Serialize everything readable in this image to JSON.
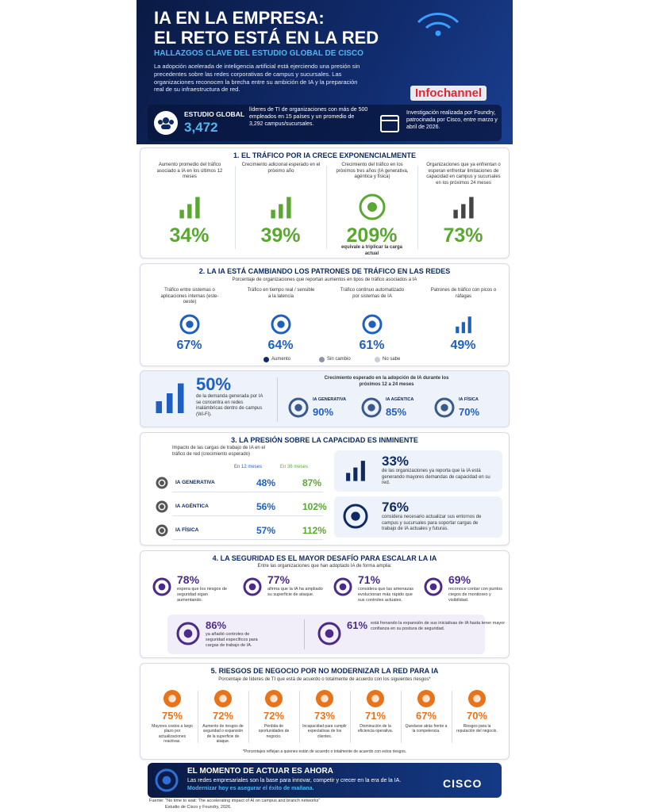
{
  "header": {
    "title_line1": "IA EN LA EMPRESA:",
    "title_line2": "EL RETO ESTÁ EN LA RED",
    "subtitle": "HALLAZGOS CLAVE DEL ESTUDIO GLOBAL DE CISCO",
    "intro": "La adopción acelerada de inteligencia artificial está ejerciendo una presión sin precedentes sobre las redes corporativas de campus y sucursales. Las organizaciones reconocen la brecha entre su ambición de IA y la preparación real de su infraestructura de red.",
    "brand": "Infochannel"
  },
  "study": {
    "label": "ESTUDIO GLOBAL",
    "count": "3,472",
    "description": "líderes de TI de organizaciones con más de 500 empleados en 15 países y un promedio de 3,292 campus/sucursales.",
    "research": "Investigación realizada por Foundry, patrocinada por Cisco, entre marzo y abril de 2026."
  },
  "section1": {
    "title": "1. EL TRÁFICO POR IA CRECE EXPONENCIALMENTE",
    "items": [
      {
        "text": "Aumento promedio del tráfico asociado a IA en los últimos 12 meses",
        "value": "34%"
      },
      {
        "text": "Crecimiento adicional esperado en el próximo año",
        "value": "39%"
      },
      {
        "text": "Crecimiento del tráfico en los próximos tres años (IA generativa, agéntica y física)",
        "value": "209%",
        "note": "equivale a triplicar la carga actual"
      },
      {
        "text": "Organizaciones que ya enfrentan o esperan enfrentar limitaciones de capacidad en campus y sucursales en los próximos 24 meses",
        "value": "73%"
      }
    ]
  },
  "section2": {
    "title": "2. LA IA ESTÁ CAMBIANDO LOS PATRONES DE TRÁFICO EN LAS REDES",
    "subtitle": "Porcentaje de organizaciones que reportan aumentos en tipos de tráfico asociados a IA",
    "items": [
      {
        "text": "Tráfico entre sistemas o aplicaciones internas (este-oeste)",
        "value": "67%"
      },
      {
        "text": "Tráfico en tiempo real / sensible a la latencia",
        "value": "64%"
      },
      {
        "text": "Tráfico continuo automatizado por sistemas de IA",
        "value": "61%"
      },
      {
        "text": "Patrones de tráfico con picos o ráfagas",
        "value": "49%"
      }
    ],
    "legend": [
      "Aumento",
      "Sin cambio",
      "No sabe"
    ]
  },
  "wifi": {
    "value": "50%",
    "text": "de la demanda generada por IA se concentra en redes inalámbricas dentro de campus (Wi-Fi).",
    "growth_title": "Crecimiento esperado en la adopción de IA durante los próximos 12 a 24 meses",
    "items": [
      {
        "label": "IA GENERATIVA",
        "value": "90%"
      },
      {
        "label": "IA AGÉNTICA",
        "value": "85%"
      },
      {
        "label": "IA FÍSICA",
        "value": "70%"
      }
    ]
  },
  "section3": {
    "title": "3. LA PRESIÓN SOBRE LA CAPACIDAD ES INMINENTE",
    "table_title": "Impacto de las cargas de trabajo de IA en el tráfico de red (crecimiento esperado)",
    "columns": [
      "En 12 meses",
      "En 36 meses"
    ],
    "rows": [
      [
        "IA GENERATIVA",
        "48%",
        "87%"
      ],
      [
        "IA AGÉNTICA",
        "56%",
        "102%"
      ],
      [
        "IA FÍSICA",
        "57%",
        "112%"
      ]
    ],
    "stats": [
      {
        "value": "33%",
        "text": "de las organizaciones ya reporta que la IA está generando mayores demandas de capacidad en su red."
      },
      {
        "value": "76%",
        "text": "considera necesario actualizar sus entornos de campus y sucursales para soportar cargas de trabajo de IA actuales y futuras."
      }
    ]
  },
  "section4": {
    "title": "4. LA SEGURIDAD ES EL MAYOR DESAFÍO PARA ESCALAR LA IA",
    "subtitle": "Entre las organizaciones que han adoptado IA de forma amplia:",
    "items": [
      {
        "value": "78%",
        "text": "espera que los riesgos de seguridad sigan aumentando."
      },
      {
        "value": "77%",
        "text": "afirma que la IA ha ampliado su superficie de ataque."
      },
      {
        "value": "71%",
        "text": "considera que las amenazas evolucionan más rápido que sus controles actuales."
      },
      {
        "value": "69%",
        "text": "reconoce contar con puntos ciegos de monitoreo y visibilidad."
      }
    ],
    "bottom": [
      {
        "value": "86%",
        "text": "ya añadió controles de seguridad específicos para cargas de trabajo de IA."
      },
      {
        "value": "61%",
        "text": "está frenando la expansión de sus iniciativas de IA hasta tener mayor confianza en su postura de seguridad."
      }
    ]
  },
  "section5": {
    "title": "5. RIESGOS DE NEGOCIO POR NO MODERNIZAR LA RED PARA IA",
    "subtitle": "Porcentaje de líderes de TI que está de acuerdo o totalmente de acuerdo con los siguientes riesgos*",
    "items": [
      {
        "value": "75%",
        "text": "Mayores costos a largo plazo por actualizaciones reactivas."
      },
      {
        "value": "72%",
        "text": "Aumento de riesgos de seguridad o expansión de la superficie de ataque."
      },
      {
        "value": "72%",
        "text": "Pérdida de oportunidades de negocio."
      },
      {
        "value": "73%",
        "text": "Incapacidad para cumplir expectativas de los clientes."
      },
      {
        "value": "71%",
        "text": "Disminución de la eficiencia operativa."
      },
      {
        "value": "67%",
        "text": "Quedarse atrás frente a la competencia."
      },
      {
        "value": "70%",
        "text": "Riesgos para la reputación del negocio."
      }
    ],
    "footnote": "*Porcentajes reflejan a quienes están de acuerdo o totalmente de acuerdo con estos riesgos."
  },
  "footer": {
    "title": "EL MOMENTO DE ACTUAR ES AHORA",
    "text": "Las redes empresariales son la base para innovar, competir y crecer en la era de la IA.",
    "emphasis": "Modernizar hoy es asegurar el éxito de mañana.",
    "logo": "CISCO"
  },
  "source": {
    "line1": "Fuente: \"No time to wait: The accelerating impact of AI on campus and branch networks\"",
    "line2": "Estudio de Cisco y Foundry, 2026."
  }
}
